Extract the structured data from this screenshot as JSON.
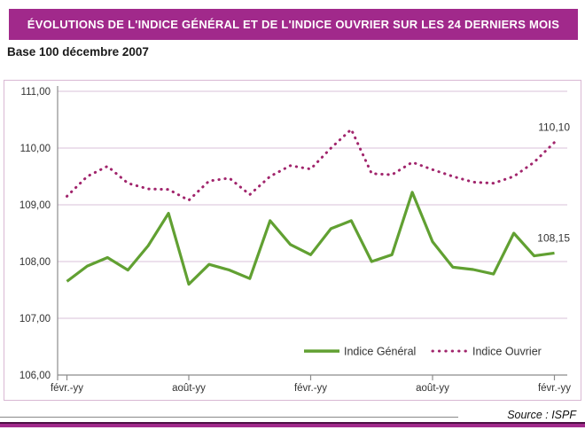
{
  "header": {
    "title": "ÉVOLUTIONS DE L'INDICE GÉNÉRAL ET DE L'INDICE OUVRIER SUR LES 24 DERNIERS MOIS",
    "subtitle": "Base 100 décembre 2007"
  },
  "footer": {
    "source": "Source : ISPF"
  },
  "colors": {
    "banner_bg": "#a1298b",
    "banner_text": "#ffffff",
    "indice_general": "#61a032",
    "indice_ouvrier": "#a1256c",
    "gridline": "#d9c0d8",
    "axis": "#8c8c8c",
    "chart_border": "#d9b8d3",
    "label_text": "#333333"
  },
  "chart_data": {
    "type": "line",
    "title": "Évolutions de l'indice général et de l'indice ouvrier sur les 24 derniers mois",
    "subtitle": "Base 100 décembre 2007",
    "n_points": 25,
    "ylim": [
      106,
      111
    ],
    "grid": true,
    "legend_position": "bottom-center",
    "y_ticks": [
      "111,00",
      "110,00",
      "109,00",
      "108,00",
      "107,00",
      "106,00"
    ],
    "x_tick_labels": [
      "févr.-yy",
      "août-yy",
      "févr.-yy",
      "août-yy",
      "févr.-yy"
    ],
    "x_tick_positions": [
      0,
      6,
      12,
      18,
      24
    ],
    "series": [
      {
        "name": "Indice Général",
        "style": "solid",
        "color": "#61a032",
        "end_label": "108,15",
        "values": [
          107.65,
          107.92,
          108.07,
          107.85,
          108.28,
          108.85,
          107.6,
          107.95,
          107.85,
          107.7,
          108.72,
          108.3,
          108.12,
          108.58,
          108.72,
          108.0,
          108.12,
          109.22,
          108.35,
          107.9,
          107.86,
          107.78,
          108.5,
          108.1,
          108.15
        ]
      },
      {
        "name": "Indice Ouvrier",
        "style": "dotted",
        "color": "#a1256c",
        "end_label": "110,10",
        "values": [
          109.15,
          109.5,
          109.68,
          109.38,
          109.28,
          109.27,
          109.08,
          109.42,
          109.47,
          109.18,
          109.5,
          109.69,
          109.63,
          110.0,
          110.33,
          109.55,
          109.53,
          109.75,
          109.62,
          109.5,
          109.4,
          109.38,
          109.5,
          109.75,
          110.1
        ]
      }
    ]
  }
}
